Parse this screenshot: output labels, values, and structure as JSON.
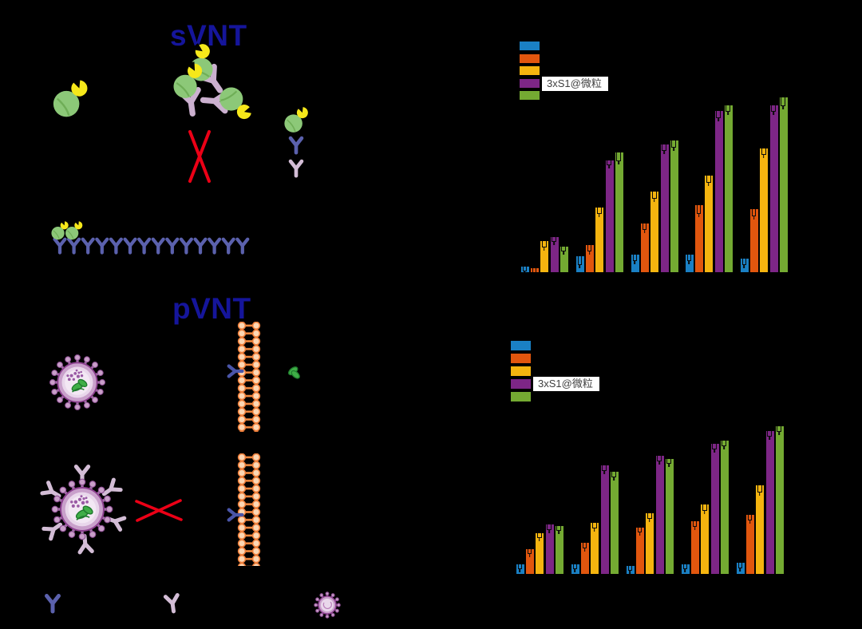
{
  "figure": {
    "background": "#000000",
    "svnt": {
      "title": "sVNT",
      "elements": {
        "free_conjugate_count": 1,
        "antibody_conjugate_complex_count": 3,
        "blocked_cross": true,
        "key_icons": [
          "rbd-hrp-conjugate",
          "blue-antibody",
          "pink-antibody"
        ],
        "plate_antibody_count": 14,
        "plate_bound_conjugate_count": 2
      }
    },
    "pvnt": {
      "title": "pVNT",
      "elements": {
        "free_pseudovirus_count": 1,
        "neutralized_pseudovirus_antibody_count": 6,
        "membrane_count": 2,
        "gfp_expressed_after_membrane_1": true,
        "blocked_cross": true,
        "key_icons": [
          "blue-antibody",
          "pink-antibody",
          "pseudovirus"
        ]
      }
    },
    "colors": {
      "title_blue": "#15159b",
      "cross_red": "#ec0016",
      "antibody_blue": "#5b61ad",
      "antibody_pink": "#d3bdd6",
      "receptor_blue": "#4a55a8",
      "hrp_green": "#8cc878",
      "rbd_yellow": "#f6e81a",
      "virus_purple": "#8d4190",
      "membrane_orange": "#f07f3a",
      "gfp_green": "#3fae47",
      "error_bar_black": "#0a0a0a",
      "legend_label_bg": "#ffffff",
      "legend_label_text": "#3f3f3f"
    }
  },
  "chart_data": [
    {
      "type": "bar",
      "title": "",
      "categories": [
        "",
        "",
        "",
        "",
        ""
      ],
      "series": [
        {
          "name": "",
          "color": "#1a80c4",
          "values": [
            3,
            8,
            9,
            9,
            7
          ],
          "errors": [
            2,
            4,
            3,
            3,
            3
          ]
        },
        {
          "name": "",
          "color": "#e1560e",
          "values": [
            2,
            14,
            25,
            34,
            32
          ],
          "errors": [
            1,
            3,
            3,
            4,
            3
          ]
        },
        {
          "name": "",
          "color": "#f5b40f",
          "values": [
            16,
            33,
            41,
            49,
            63
          ],
          "errors": [
            3,
            3,
            3,
            3,
            3
          ]
        },
        {
          "name": "3xS1@微粒",
          "color": "#7d2686",
          "values": [
            18,
            57,
            65,
            82,
            85
          ],
          "errors": [
            2,
            2,
            3,
            3,
            3
          ]
        },
        {
          "name": "",
          "color": "#74aa32",
          "values": [
            13,
            61,
            67,
            85,
            89
          ],
          "errors": [
            2,
            4,
            3,
            3,
            4
          ]
        }
      ],
      "ylim": [
        0,
        100
      ],
      "legend_position": "upper left",
      "grid": false,
      "axis_text_visible": false,
      "note_values_estimated_from_bar_heights": true
    },
    {
      "type": "bar",
      "title": "",
      "categories": [
        "",
        "",
        "",
        "",
        ""
      ],
      "series": [
        {
          "name": "",
          "color": "#1a80c4",
          "values": [
            6,
            6,
            5,
            6,
            7
          ],
          "errors": [
            2,
            2,
            2,
            2,
            3
          ]
        },
        {
          "name": "",
          "color": "#e1560e",
          "values": [
            15,
            19,
            28,
            32,
            36
          ],
          "errors": [
            2,
            3,
            2,
            3,
            3
          ]
        },
        {
          "name": "",
          "color": "#f5b40f",
          "values": [
            25,
            31,
            37,
            42,
            54
          ],
          "errors": [
            2,
            3,
            3,
            3,
            4
          ]
        },
        {
          "name": "3xS1@微粒",
          "color": "#7d2686",
          "values": [
            30,
            66,
            72,
            79,
            87
          ],
          "errors": [
            3,
            3,
            3,
            3,
            3
          ]
        },
        {
          "name": "",
          "color": "#74aa32",
          "values": [
            29,
            62,
            70,
            81,
            90
          ],
          "errors": [
            2,
            3,
            2,
            3,
            3
          ]
        }
      ],
      "ylim": [
        0,
        100
      ],
      "legend_position": "upper left",
      "grid": false,
      "axis_text_visible": false,
      "note_values_estimated_from_bar_heights": true
    }
  ]
}
